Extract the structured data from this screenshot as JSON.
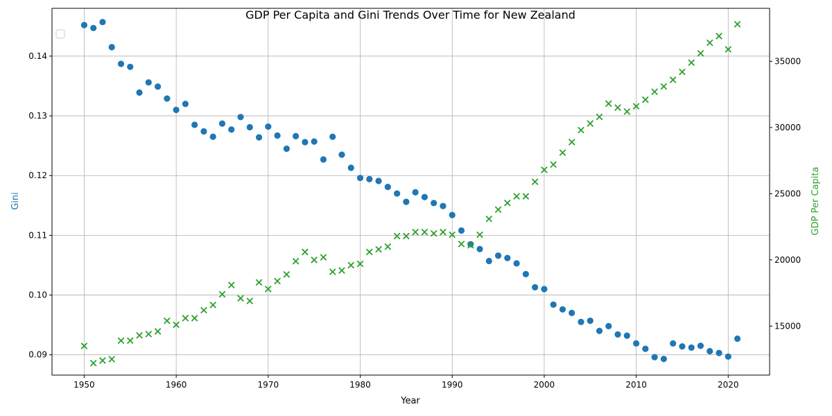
{
  "chart_data": {
    "type": "scatter",
    "title": "GDP Per Capita and Gini Trends Over Time for New Zealand",
    "xlabel": "Year",
    "ylabel_left": "Gini",
    "ylabel_right": "GDP Per Capita",
    "xlim": [
      1946.5,
      2024.5
    ],
    "ylim_left": [
      0.0866,
      0.148
    ],
    "ylim_right": [
      11300,
      39000
    ],
    "xticks": [
      1950,
      1960,
      1970,
      1980,
      1990,
      2000,
      2010,
      2020
    ],
    "yticks_left": [
      0.09,
      0.1,
      0.11,
      0.12,
      0.13,
      0.14
    ],
    "ytick_labels_left": [
      "0.09",
      "0.10",
      "0.11",
      "0.12",
      "0.13",
      "0.14"
    ],
    "yticks_right": [
      15000,
      20000,
      25000,
      30000,
      35000
    ],
    "grid": true,
    "legend": "top-left",
    "colors": {
      "gini": "#1f77b4",
      "gdp": "#2ca02c"
    },
    "series": [
      {
        "axis": "left",
        "marker": "circle",
        "x": [
          1950,
          1951,
          1952,
          1953,
          1954,
          1955,
          1956,
          1957,
          1958,
          1959,
          1960,
          1961,
          1962,
          1963,
          1964,
          1965,
          1966,
          1967,
          1968,
          1969,
          1970,
          1971,
          1972,
          1973,
          1974,
          1975,
          1976,
          1977,
          1978,
          1979,
          1980,
          1981,
          1982,
          1983,
          1984,
          1985,
          1986,
          1987,
          1988,
          1989,
          1990,
          1991,
          1992,
          1993,
          1994,
          1995,
          1996,
          1997,
          1998,
          1999,
          2000,
          2001,
          2002,
          2003,
          2004,
          2005,
          2006,
          2007,
          2008,
          2009,
          2010,
          2011,
          2012,
          2013,
          2014,
          2015,
          2016,
          2017,
          2018,
          2019,
          2020,
          2021
        ],
        "values": [
          0.1452,
          0.1447,
          0.1457,
          0.1415,
          0.1387,
          0.1382,
          0.1339,
          0.1356,
          0.1349,
          0.1329,
          0.131,
          0.132,
          0.1285,
          0.1274,
          0.1265,
          0.1287,
          0.1277,
          0.1298,
          0.1281,
          0.1264,
          0.1282,
          0.1267,
          0.1245,
          0.1266,
          0.1256,
          0.1257,
          0.1227,
          0.1265,
          0.1235,
          0.1213,
          0.1196,
          0.1194,
          0.1191,
          0.1181,
          0.117,
          0.1156,
          0.1172,
          0.1164,
          0.1154,
          0.1149,
          0.1134,
          0.1108,
          0.1085,
          0.1077,
          0.1057,
          0.1066,
          0.1062,
          0.1053,
          0.1035,
          0.1013,
          0.101,
          0.0984,
          0.0976,
          0.097,
          0.0955,
          0.0957,
          0.094,
          0.0948,
          0.0934,
          0.0932,
          0.0919,
          0.091,
          0.0896,
          0.0893,
          0.0919,
          0.0914,
          0.0912,
          0.0915,
          0.0906,
          0.0903,
          0.0897,
          0.0927
        ]
      },
      {
        "axis": "right",
        "marker": "x",
        "x": [
          1950,
          1951,
          1952,
          1953,
          1954,
          1955,
          1956,
          1957,
          1958,
          1959,
          1960,
          1961,
          1962,
          1963,
          1964,
          1965,
          1966,
          1967,
          1968,
          1969,
          1970,
          1971,
          1972,
          1973,
          1974,
          1975,
          1976,
          1977,
          1978,
          1979,
          1980,
          1981,
          1982,
          1983,
          1984,
          1985,
          1986,
          1987,
          1988,
          1989,
          1990,
          1991,
          1992,
          1993,
          1994,
          1995,
          1996,
          1997,
          1998,
          1999,
          2000,
          2001,
          2002,
          2003,
          2004,
          2005,
          2006,
          2007,
          2008,
          2009,
          2010,
          2011,
          2012,
          2013,
          2014,
          2015,
          2016,
          2017,
          2018,
          2019,
          2020,
          2021
        ],
        "values": [
          13500,
          12200,
          12400,
          12500,
          13900,
          13900,
          14300,
          14400,
          14600,
          15400,
          15100,
          15600,
          15600,
          16200,
          16600,
          17400,
          18100,
          17100,
          16900,
          18300,
          17800,
          18400,
          18900,
          19900,
          20600,
          20000,
          20200,
          19100,
          19200,
          19600,
          19700,
          20600,
          20800,
          21000,
          21800,
          21800,
          22100,
          22100,
          22000,
          22100,
          21900,
          21200,
          21100,
          21900,
          23100,
          23800,
          24300,
          24800,
          24800,
          25900,
          26800,
          27200,
          28100,
          28900,
          29800,
          30300,
          30800,
          31800,
          31500,
          31200,
          31600,
          32100,
          32700,
          33100,
          33600,
          34200,
          34900,
          35600,
          36400,
          36900,
          35900,
          37800
        ]
      }
    ]
  }
}
